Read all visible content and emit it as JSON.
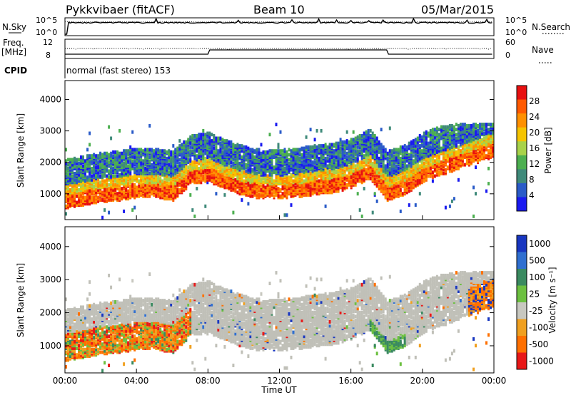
{
  "header": {
    "station": "Pykkvibaer (fitACF)",
    "beam": "Beam 10",
    "date": "05/Mar/2015"
  },
  "panel_labels": {
    "nsky": "N.Sky",
    "nsearch": "N.Search",
    "freq": "Freq.",
    "freq_unit": "[MHz]",
    "nave": "Nave",
    "cpid": "CPID",
    "cpid_value": "normal (fast stereo) 153",
    "noise_ticks_left": [
      "10^5",
      "10^0"
    ],
    "noise_ticks_right": [
      "10^5",
      "10^0"
    ],
    "freq_ticks": [
      "12",
      "8"
    ],
    "nave_ticks": [
      "60",
      "0"
    ]
  },
  "chart_data": [
    {
      "type": "heatmap",
      "name": "power",
      "xlabel": "Time UT",
      "ylabel": "Slant Range [km]",
      "x_tick_labels": [
        "00:00",
        "04:00",
        "08:00",
        "12:00",
        "16:00",
        "20:00",
        "00:00"
      ],
      "xlim_hours": [
        0,
        24
      ],
      "y_ticks": [
        1000,
        2000,
        3000,
        4000
      ],
      "ylim": [
        180,
        4600
      ],
      "colorbar": {
        "label": "Power [dB]",
        "ticks": [
          4,
          8,
          12,
          16,
          20,
          24,
          28
        ],
        "range": [
          0,
          32
        ],
        "colors": [
          "#1a1af0",
          "#2a5bc8",
          "#3f8a7a",
          "#4caf50",
          "#a8d24a",
          "#f5c400",
          "#ff9000",
          "#ff5a00",
          "#e81010"
        ]
      },
      "echo_band": {
        "hours": [
          0,
          1,
          2,
          3,
          4,
          5,
          6,
          7,
          8,
          9,
          10,
          11,
          12,
          13,
          14,
          15,
          16,
          17,
          18,
          19,
          20,
          21,
          22,
          23,
          24
        ],
        "center_km": [
          850,
          950,
          1050,
          1100,
          1200,
          1200,
          1100,
          1600,
          1700,
          1450,
          1250,
          1150,
          1150,
          1200,
          1300,
          1350,
          1500,
          1800,
          1100,
          1300,
          1700,
          1900,
          2100,
          2300,
          2500
        ]
      }
    },
    {
      "type": "heatmap",
      "name": "velocity",
      "xlabel": "Time UT",
      "ylabel": "Slant Range [km]",
      "x_tick_labels": [
        "00:00",
        "04:00",
        "08:00",
        "12:00",
        "16:00",
        "20:00",
        "00:00"
      ],
      "y_ticks": [
        1000,
        2000,
        3000,
        4000
      ],
      "ylim": [
        180,
        4600
      ],
      "colorbar": {
        "label": "Velocity [m s⁻¹]",
        "ticks": [
          "1000",
          "500",
          "100",
          "25",
          "-25",
          "-100",
          "-500",
          "-1000"
        ],
        "colors": [
          "#1836c0",
          "#2f6fd0",
          "#3a8a60",
          "#6cc040",
          "#c8c8c0",
          "#f0a020",
          "#ff7000",
          "#e81818"
        ]
      },
      "ground_scatter_color": "#c0c0b8"
    }
  ]
}
